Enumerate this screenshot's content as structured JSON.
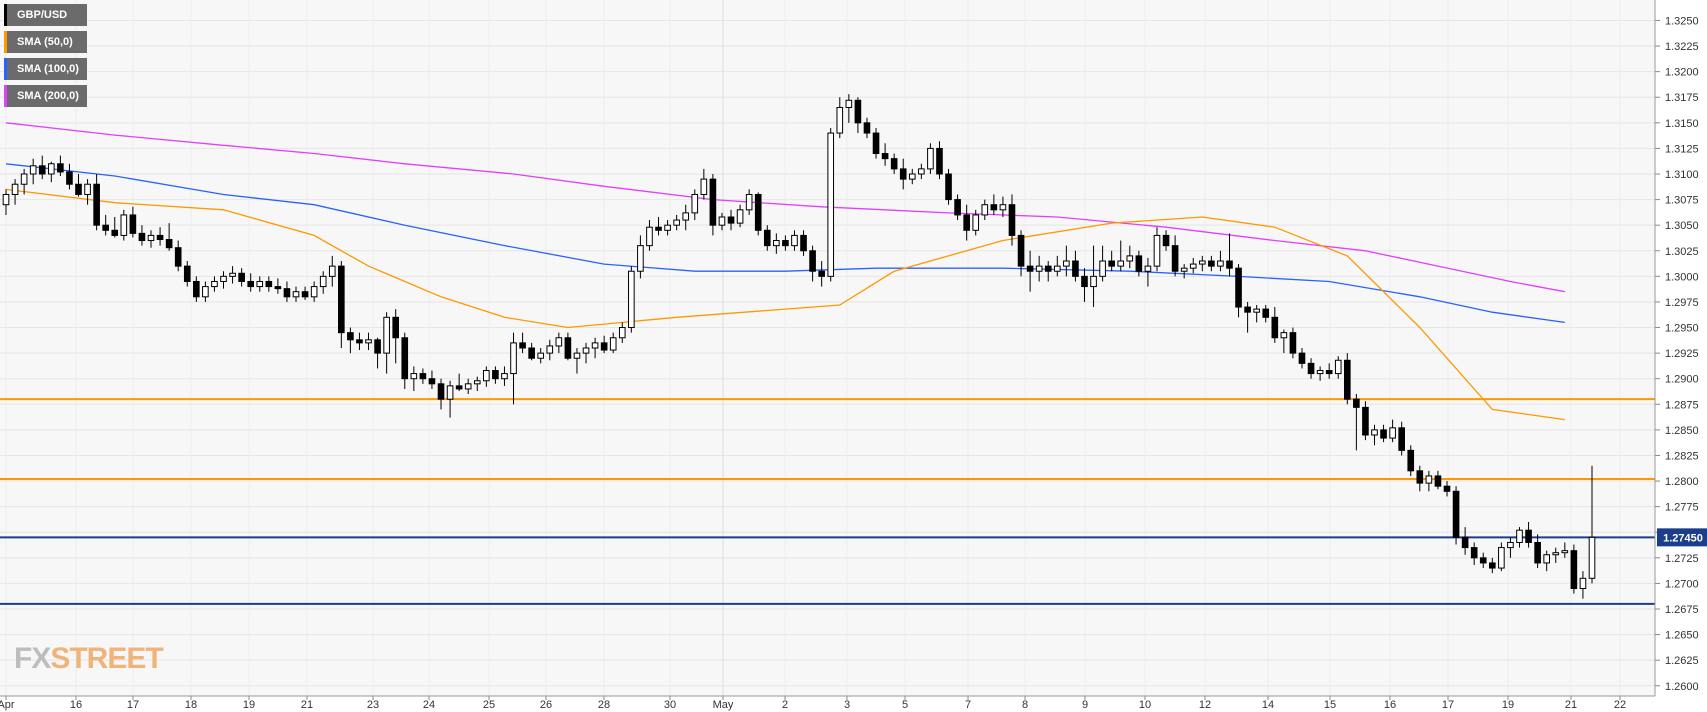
{
  "brand": {
    "logo_text_a": "FX",
    "logo_text_b": "STREET"
  },
  "legend": [
    {
      "label": "GBP/USD",
      "color": "#000000"
    },
    {
      "label": "SMA (50,0)",
      "color": "#ff9800"
    },
    {
      "label": "SMA (100,0)",
      "color": "#2962ff"
    },
    {
      "label": "SMA (200,0)",
      "color": "#e040fb"
    }
  ],
  "current_price_label": "1.27450",
  "chart_data": {
    "type": "candlestick",
    "title": "",
    "symbol": "GBP/USD",
    "ylim": [
      1.259,
      1.327
    ],
    "y_ticks": [
      "1.2600",
      "1.2625",
      "1.2650",
      "1.2675",
      "1.2700",
      "1.2725",
      "1.2750",
      "1.2775",
      "1.2800",
      "1.2825",
      "1.2850",
      "1.2875",
      "1.2900",
      "1.2925",
      "1.2950",
      "1.2975",
      "1.3000",
      "1.3025",
      "1.3050",
      "1.3075",
      "1.3100",
      "1.3125",
      "1.3150",
      "1.3175",
      "1.3200",
      "1.3225",
      "1.3250"
    ],
    "x_ticks": [
      "Apr",
      "16",
      "17",
      "18",
      "19",
      "21",
      "23",
      "24",
      "25",
      "26",
      "28",
      "30",
      "May",
      "2",
      "3",
      "5",
      "7",
      "8",
      "9",
      "10",
      "12",
      "14",
      "15",
      "16",
      "17",
      "19",
      "21",
      "22"
    ],
    "grid": true,
    "horizontal_levels": [
      {
        "value": 1.288,
        "color": "#ff9800"
      },
      {
        "value": 1.2802,
        "color": "#ff9800"
      },
      {
        "value": 1.2745,
        "color": "#1a3e8c"
      },
      {
        "value": 1.268,
        "color": "#1a3e8c"
      }
    ],
    "candles": [
      [
        1.307,
        1.3085,
        1.306,
        1.308
      ],
      [
        1.308,
        1.3095,
        1.307,
        1.309
      ],
      [
        1.309,
        1.3105,
        1.308,
        1.31
      ],
      [
        1.31,
        1.3115,
        1.309,
        1.3108
      ],
      [
        1.3108,
        1.3118,
        1.3095,
        1.31
      ],
      [
        1.31,
        1.3112,
        1.3092,
        1.311
      ],
      [
        1.311,
        1.3118,
        1.3098,
        1.3102
      ],
      [
        1.3102,
        1.311,
        1.3085,
        1.309
      ],
      [
        1.309,
        1.31,
        1.3078,
        1.308
      ],
      [
        1.308,
        1.3095,
        1.307,
        1.309
      ],
      [
        1.309,
        1.31,
        1.3045,
        1.305
      ],
      [
        1.305,
        1.306,
        1.304,
        1.3045
      ],
      [
        1.3045,
        1.3058,
        1.3038,
        1.304
      ],
      [
        1.304,
        1.3065,
        1.3035,
        1.306
      ],
      [
        1.306,
        1.3068,
        1.3038,
        1.3042
      ],
      [
        1.3042,
        1.305,
        1.303,
        1.3035
      ],
      [
        1.3035,
        1.3045,
        1.3028,
        1.304
      ],
      [
        1.304,
        1.3048,
        1.303,
        1.3036
      ],
      [
        1.3036,
        1.3052,
        1.3025,
        1.3028
      ],
      [
        1.3028,
        1.3035,
        1.3005,
        1.301
      ],
      [
        1.301,
        1.3015,
        1.299,
        1.2995
      ],
      [
        1.2995,
        1.3,
        1.2975,
        1.298
      ],
      [
        1.298,
        1.2995,
        1.2975,
        1.299
      ],
      [
        1.299,
        1.3,
        1.2985,
        1.2995
      ],
      [
        1.2995,
        1.3005,
        1.2988,
        1.3
      ],
      [
        1.3,
        1.301,
        1.2993,
        1.3003
      ],
      [
        1.3003,
        1.3008,
        1.299,
        1.2995
      ],
      [
        1.2995,
        1.3003,
        1.2985,
        1.299
      ],
      [
        1.299,
        1.3,
        1.2985,
        1.2995
      ],
      [
        1.2995,
        1.3,
        1.2985,
        1.299
      ],
      [
        1.299,
        1.2998,
        1.2983,
        1.2988
      ],
      [
        1.2988,
        1.2995,
        1.2975,
        1.298
      ],
      [
        1.298,
        1.299,
        1.2975,
        1.2985
      ],
      [
        1.2985,
        1.299,
        1.2977,
        1.298
      ],
      [
        1.298,
        1.2995,
        1.2975,
        1.299
      ],
      [
        1.299,
        1.3005,
        1.2983,
        1.3
      ],
      [
        1.3,
        1.302,
        1.299,
        1.301
      ],
      [
        1.301,
        1.3015,
        1.293,
        1.2945
      ],
      [
        1.2945,
        1.295,
        1.2925,
        1.2938
      ],
      [
        1.2938,
        1.2945,
        1.2928,
        1.2935
      ],
      [
        1.2935,
        1.2945,
        1.2928,
        1.2938
      ],
      [
        1.2938,
        1.294,
        1.291,
        1.2925
      ],
      [
        1.2925,
        1.2965,
        1.2905,
        1.296
      ],
      [
        1.296,
        1.2968,
        1.2915,
        1.294
      ],
      [
        1.294,
        1.2945,
        1.289,
        1.29
      ],
      [
        1.29,
        1.2912,
        1.2888,
        1.2905
      ],
      [
        1.2905,
        1.291,
        1.2895,
        1.29
      ],
      [
        1.29,
        1.2908,
        1.289,
        1.2895
      ],
      [
        1.2895,
        1.29,
        1.287,
        1.288
      ],
      [
        1.288,
        1.2898,
        1.2862,
        1.2893
      ],
      [
        1.2893,
        1.2905,
        1.2888,
        1.289
      ],
      [
        1.289,
        1.29,
        1.2885,
        1.2895
      ],
      [
        1.2895,
        1.2902,
        1.2888,
        1.2898
      ],
      [
        1.2898,
        1.2912,
        1.2892,
        1.2908
      ],
      [
        1.2908,
        1.2912,
        1.2895,
        1.29
      ],
      [
        1.29,
        1.2912,
        1.2893,
        1.2905
      ],
      [
        1.2905,
        1.2945,
        1.2875,
        1.2935
      ],
      [
        1.2935,
        1.2945,
        1.2925,
        1.293
      ],
      [
        1.293,
        1.2935,
        1.2918,
        1.292
      ],
      [
        1.292,
        1.293,
        1.2915,
        1.2925
      ],
      [
        1.2925,
        1.2938,
        1.2918,
        1.2932
      ],
      [
        1.2932,
        1.2945,
        1.2925,
        1.294
      ],
      [
        1.294,
        1.2945,
        1.2918,
        1.292
      ],
      [
        1.292,
        1.293,
        1.2905,
        1.2925
      ],
      [
        1.2925,
        1.2935,
        1.2915,
        1.293
      ],
      [
        1.293,
        1.294,
        1.292,
        1.2935
      ],
      [
        1.2935,
        1.2942,
        1.2925,
        1.2928
      ],
      [
        1.2928,
        1.2945,
        1.2925,
        1.294
      ],
      [
        1.294,
        1.2955,
        1.2935,
        1.295
      ],
      [
        1.295,
        1.301,
        1.2945,
        1.3005
      ],
      [
        1.3005,
        1.304,
        1.2998,
        1.303
      ],
      [
        1.303,
        1.3055,
        1.3025,
        1.3048
      ],
      [
        1.3048,
        1.3058,
        1.304,
        1.3045
      ],
      [
        1.3045,
        1.3055,
        1.304,
        1.305
      ],
      [
        1.305,
        1.306,
        1.3045,
        1.3055
      ],
      [
        1.3055,
        1.307,
        1.3045,
        1.3062
      ],
      [
        1.3062,
        1.3085,
        1.3055,
        1.308
      ],
      [
        1.308,
        1.3105,
        1.3075,
        1.3095
      ],
      [
        1.3095,
        1.31,
        1.304,
        1.305
      ],
      [
        1.305,
        1.3062,
        1.3045,
        1.3058
      ],
      [
        1.3058,
        1.3065,
        1.3045,
        1.3052
      ],
      [
        1.3052,
        1.307,
        1.3048,
        1.3065
      ],
      [
        1.3065,
        1.3085,
        1.306,
        1.308
      ],
      [
        1.308,
        1.3082,
        1.304,
        1.3045
      ],
      [
        1.3045,
        1.305,
        1.3025,
        1.303
      ],
      [
        1.303,
        1.3042,
        1.3022,
        1.3035
      ],
      [
        1.3035,
        1.304,
        1.3025,
        1.303
      ],
      [
        1.303,
        1.3045,
        1.3025,
        1.304
      ],
      [
        1.304,
        1.3045,
        1.302,
        1.3025
      ],
      [
        1.3025,
        1.303,
        1.2995,
        1.3005
      ],
      [
        1.3005,
        1.3015,
        1.299,
        1.3
      ],
      [
        1.3,
        1.3145,
        1.2995,
        1.314
      ],
      [
        1.314,
        1.3175,
        1.3135,
        1.3165
      ],
      [
        1.3165,
        1.3178,
        1.315,
        1.3172
      ],
      [
        1.3172,
        1.3175,
        1.314,
        1.315
      ],
      [
        1.315,
        1.3155,
        1.3135,
        1.314
      ],
      [
        1.314,
        1.3145,
        1.3115,
        1.312
      ],
      [
        1.312,
        1.313,
        1.3108,
        1.3115
      ],
      [
        1.3115,
        1.312,
        1.31,
        1.3105
      ],
      [
        1.3105,
        1.3115,
        1.3085,
        1.3095
      ],
      [
        1.3095,
        1.3105,
        1.309,
        1.31
      ],
      [
        1.31,
        1.311,
        1.3095,
        1.3105
      ],
      [
        1.3105,
        1.313,
        1.31,
        1.3125
      ],
      [
        1.3125,
        1.3132,
        1.3095,
        1.31
      ],
      [
        1.31,
        1.3105,
        1.307,
        1.3075
      ],
      [
        1.3075,
        1.308,
        1.3055,
        1.306
      ],
      [
        1.306,
        1.307,
        1.3035,
        1.3045
      ],
      [
        1.3045,
        1.3065,
        1.304,
        1.306
      ],
      [
        1.306,
        1.3075,
        1.3055,
        1.307
      ],
      [
        1.307,
        1.308,
        1.306,
        1.3065
      ],
      [
        1.3065,
        1.3078,
        1.3058,
        1.307
      ],
      [
        1.307,
        1.308,
        1.303,
        1.304
      ],
      [
        1.304,
        1.3045,
        1.3,
        1.301
      ],
      [
        1.301,
        1.3025,
        1.2985,
        1.3005
      ],
      [
        1.3005,
        1.302,
        1.2995,
        1.301
      ],
      [
        1.301,
        1.3015,
        1.2995,
        1.3005
      ],
      [
        1.3005,
        1.302,
        1.3,
        1.301
      ],
      [
        1.301,
        1.303,
        1.3,
        1.3015
      ],
      [
        1.3015,
        1.3025,
        1.2995,
        1.3
      ],
      [
        1.3,
        1.3008,
        1.2975,
        1.299
      ],
      [
        1.299,
        1.303,
        1.297,
        1.3
      ],
      [
        1.3,
        1.303,
        1.2995,
        1.3015
      ],
      [
        1.3015,
        1.3025,
        1.3005,
        1.301
      ],
      [
        1.301,
        1.3035,
        1.3005,
        1.3015
      ],
      [
        1.3015,
        1.303,
        1.3008,
        1.302
      ],
      [
        1.302,
        1.3025,
        1.3,
        1.3005
      ],
      [
        1.3005,
        1.3018,
        1.299,
        1.301
      ],
      [
        1.301,
        1.3048,
        1.3005,
        1.304
      ],
      [
        1.304,
        1.3045,
        1.3025,
        1.303
      ],
      [
        1.303,
        1.304,
        1.3,
        1.3005
      ],
      [
        1.3005,
        1.3012,
        1.2998,
        1.3008
      ],
      [
        1.3008,
        1.3018,
        1.3003,
        1.3012
      ],
      [
        1.3012,
        1.302,
        1.3005,
        1.3015
      ],
      [
        1.3015,
        1.302,
        1.3005,
        1.301
      ],
      [
        1.301,
        1.3025,
        1.3005,
        1.3015
      ],
      [
        1.3015,
        1.3042,
        1.3,
        1.3008
      ],
      [
        1.3008,
        1.3012,
        1.296,
        1.297
      ],
      [
        1.297,
        1.2975,
        1.2945,
        1.2965
      ],
      [
        1.2965,
        1.2972,
        1.2955,
        1.2968
      ],
      [
        1.2968,
        1.2972,
        1.2955,
        1.296
      ],
      [
        1.296,
        1.297,
        1.2935,
        1.294
      ],
      [
        1.294,
        1.2948,
        1.2925,
        1.2945
      ],
      [
        1.2945,
        1.295,
        1.292,
        1.2925
      ],
      [
        1.2925,
        1.293,
        1.291,
        1.2915
      ],
      [
        1.2915,
        1.292,
        1.29,
        1.2905
      ],
      [
        1.2905,
        1.2912,
        1.2898,
        1.2908
      ],
      [
        1.2908,
        1.2915,
        1.29,
        1.2905
      ],
      [
        1.2905,
        1.2922,
        1.29,
        1.2918
      ],
      [
        1.2918,
        1.2925,
        1.2875,
        1.288
      ],
      [
        1.288,
        1.2885,
        1.283,
        1.2872
      ],
      [
        1.2872,
        1.2878,
        1.284,
        1.2845
      ],
      [
        1.2845,
        1.2855,
        1.2835,
        1.285
      ],
      [
        1.285,
        1.2855,
        1.2838,
        1.2842
      ],
      [
        1.2842,
        1.286,
        1.2838,
        1.2852
      ],
      [
        1.2852,
        1.2858,
        1.2825,
        1.283
      ],
      [
        1.283,
        1.2835,
        1.2805,
        1.281
      ],
      [
        1.281,
        1.2815,
        1.279,
        1.2798
      ],
      [
        1.2798,
        1.281,
        1.279,
        1.2805
      ],
      [
        1.2805,
        1.281,
        1.2792,
        1.2795
      ],
      [
        1.2795,
        1.28,
        1.2785,
        1.279
      ],
      [
        1.279,
        1.2795,
        1.2738,
        1.2745
      ],
      [
        1.2745,
        1.2755,
        1.2728,
        1.2735
      ],
      [
        1.2735,
        1.274,
        1.2718,
        1.2725
      ],
      [
        1.2725,
        1.273,
        1.2715,
        1.272
      ],
      [
        1.272,
        1.2725,
        1.271,
        1.2715
      ],
      [
        1.2715,
        1.274,
        1.2712,
        1.2735
      ],
      [
        1.2735,
        1.2745,
        1.2725,
        1.274
      ],
      [
        1.274,
        1.2755,
        1.2735,
        1.2752
      ],
      [
        1.2752,
        1.276,
        1.2735,
        1.274
      ],
      [
        1.274,
        1.2748,
        1.2715,
        1.272
      ],
      [
        1.272,
        1.2732,
        1.2712,
        1.2728
      ],
      [
        1.2728,
        1.2735,
        1.272,
        1.273
      ],
      [
        1.273,
        1.274,
        1.2725,
        1.2732
      ],
      [
        1.2732,
        1.2738,
        1.269,
        1.2695
      ],
      [
        1.2695,
        1.2712,
        1.2685,
        1.2705
      ],
      [
        1.2705,
        1.2815,
        1.27,
        1.2745
      ]
    ],
    "sma_50": [
      [
        0,
        1.3085
      ],
      [
        12,
        1.3072
      ],
      [
        24,
        1.3065
      ],
      [
        34,
        1.304
      ],
      [
        40,
        1.301
      ],
      [
        48,
        1.298
      ],
      [
        55,
        1.296
      ],
      [
        62,
        1.295
      ],
      [
        74,
        1.296
      ],
      [
        86,
        1.2968
      ],
      [
        92,
        1.2972
      ],
      [
        98,
        1.3005
      ],
      [
        110,
        1.3035
      ],
      [
        122,
        1.3052
      ],
      [
        132,
        1.3058
      ],
      [
        140,
        1.3048
      ],
      [
        148,
        1.302
      ],
      [
        156,
        1.295
      ],
      [
        164,
        1.287
      ],
      [
        172,
        1.286
      ]
    ],
    "sma_100": [
      [
        0,
        1.311
      ],
      [
        12,
        1.3098
      ],
      [
        24,
        1.308
      ],
      [
        34,
        1.307
      ],
      [
        44,
        1.305
      ],
      [
        55,
        1.303
      ],
      [
        66,
        1.3012
      ],
      [
        76,
        1.3005
      ],
      [
        86,
        1.3005
      ],
      [
        96,
        1.3008
      ],
      [
        110,
        1.3008
      ],
      [
        124,
        1.3005
      ],
      [
        136,
        1.3
      ],
      [
        146,
        1.2995
      ],
      [
        156,
        1.298
      ],
      [
        164,
        1.2965
      ],
      [
        172,
        1.2955
      ]
    ],
    "sma_200": [
      [
        0,
        1.315
      ],
      [
        12,
        1.3138
      ],
      [
        24,
        1.3128
      ],
      [
        34,
        1.312
      ],
      [
        44,
        1.311
      ],
      [
        56,
        1.31
      ],
      [
        66,
        1.3088
      ],
      [
        78,
        1.3075
      ],
      [
        90,
        1.3068
      ],
      [
        104,
        1.3062
      ],
      [
        116,
        1.3058
      ],
      [
        128,
        1.3048
      ],
      [
        140,
        1.3035
      ],
      [
        150,
        1.3025
      ],
      [
        158,
        1.301
      ],
      [
        166,
        1.2995
      ],
      [
        172,
        1.2985
      ]
    ]
  }
}
